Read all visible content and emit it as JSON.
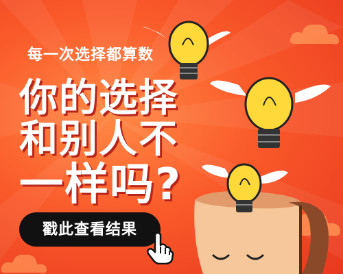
{
  "banner": {
    "subtitle": "每一次选择都算数",
    "headline_line1": "你的选择",
    "headline_line2": "和别人不",
    "headline_line3": "一样吗?"
  },
  "cta": {
    "label": "戳此查看结果"
  },
  "colors": {
    "background": "#fa5a2a",
    "cta_background": "#111111",
    "text": "#ffffff",
    "bulb": "#ffd83a",
    "head": "#f6c79a"
  },
  "icons": [
    "lightbulb-with-wings-icon",
    "pointing-hand-cursor-icon",
    "cloud-icon",
    "head-illustration"
  ]
}
